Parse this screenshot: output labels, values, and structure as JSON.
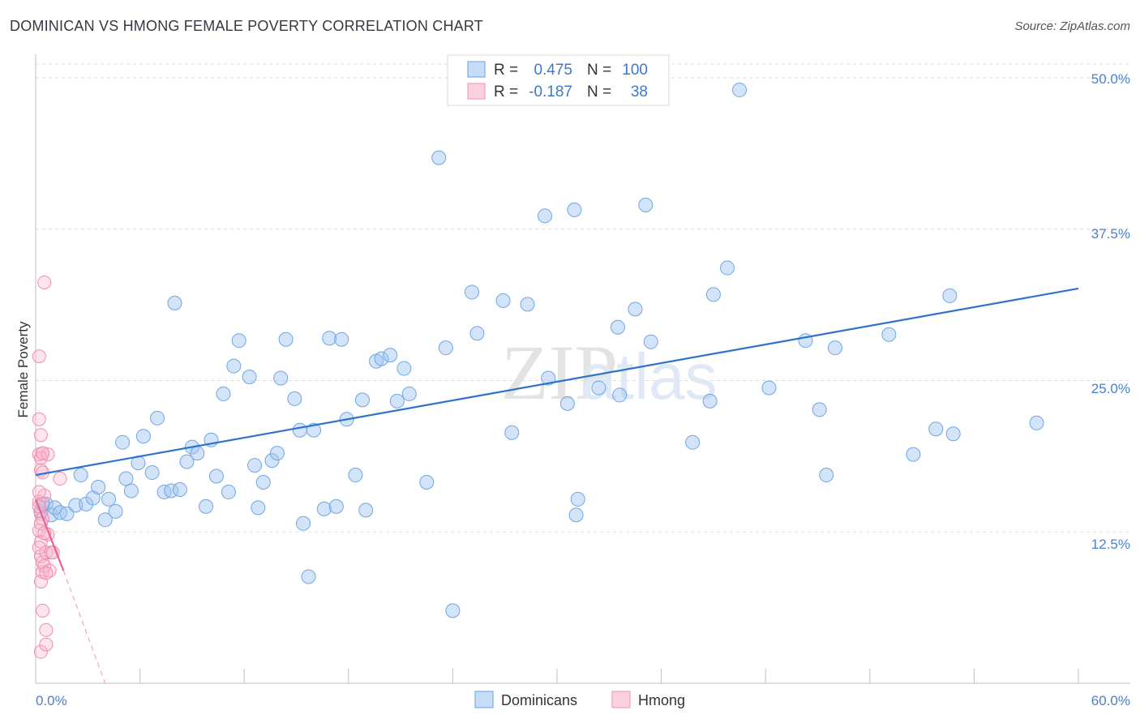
{
  "title": "DOMINICAN VS HMONG FEMALE POVERTY CORRELATION CHART",
  "source": "Source: ZipAtlas.com",
  "watermark": {
    "zip": "ZIP",
    "atlas": "atlas"
  },
  "legend_box": {
    "rows": [
      {
        "r_label": "R =",
        "r_value": "0.475",
        "n_label": "N =",
        "n_value": "100",
        "color": "#7aaee8"
      },
      {
        "r_label": "R =",
        "r_value": "-0.187",
        "n_label": "N =",
        "n_value": "38",
        "color": "#f4a0bb"
      }
    ]
  },
  "colors": {
    "blue": "#6fa6e4",
    "blue_line": "#2f72c9",
    "pink": "#f08db0",
    "pink_line": "#e8628f",
    "tick_text": "#4a7fd0"
  },
  "chart_data": {
    "type": "scatter",
    "title": "DOMINICAN VS HMONG FEMALE POVERTY CORRELATION CHART",
    "xlabel": "",
    "ylabel": "Female Poverty",
    "xlim": [
      0,
      60
    ],
    "ylim": [
      0,
      50
    ],
    "x_tick_labels": [
      "0.0%",
      "60.0%"
    ],
    "y_ticks": [
      12.5,
      25.0,
      37.5,
      50.0
    ],
    "y_tick_labels": [
      "12.5%",
      "25.0%",
      "37.5%",
      "50.0%"
    ],
    "grid": true,
    "legend_position": "bottom-center",
    "series": [
      {
        "name": "Dominicans",
        "color": "#6fa6e4",
        "trend": {
          "x": [
            0,
            60
          ],
          "y": [
            17.2,
            32.6
          ]
        },
        "points": [
          [
            0.3,
            14.2
          ],
          [
            0.6,
            14.8
          ],
          [
            0.9,
            13.9
          ],
          [
            1.1,
            14.5
          ],
          [
            1.4,
            14.1
          ],
          [
            1.8,
            14.0
          ],
          [
            2.3,
            14.7
          ],
          [
            2.6,
            17.2
          ],
          [
            2.9,
            14.8
          ],
          [
            3.3,
            15.3
          ],
          [
            3.6,
            16.2
          ],
          [
            4.0,
            13.5
          ],
          [
            4.2,
            15.2
          ],
          [
            4.6,
            14.2
          ],
          [
            5.0,
            19.9
          ],
          [
            5.2,
            16.9
          ],
          [
            5.5,
            15.9
          ],
          [
            5.9,
            18.2
          ],
          [
            6.2,
            20.4
          ],
          [
            6.7,
            17.4
          ],
          [
            7.0,
            21.9
          ],
          [
            7.4,
            15.8
          ],
          [
            7.8,
            15.9
          ],
          [
            8.0,
            31.4
          ],
          [
            8.3,
            16.0
          ],
          [
            8.7,
            18.3
          ],
          [
            9.0,
            19.5
          ],
          [
            9.3,
            19.0
          ],
          [
            9.8,
            14.6
          ],
          [
            10.1,
            20.1
          ],
          [
            10.4,
            17.1
          ],
          [
            10.8,
            23.9
          ],
          [
            11.1,
            15.8
          ],
          [
            11.4,
            26.2
          ],
          [
            11.7,
            28.3
          ],
          [
            12.3,
            25.3
          ],
          [
            12.6,
            18.0
          ],
          [
            12.8,
            14.5
          ],
          [
            13.1,
            16.6
          ],
          [
            13.6,
            18.4
          ],
          [
            13.9,
            19.0
          ],
          [
            14.1,
            25.2
          ],
          [
            14.4,
            28.4
          ],
          [
            14.9,
            23.5
          ],
          [
            15.2,
            20.9
          ],
          [
            15.4,
            13.2
          ],
          [
            15.7,
            8.8
          ],
          [
            16.0,
            20.9
          ],
          [
            16.6,
            14.4
          ],
          [
            16.9,
            28.5
          ],
          [
            17.3,
            14.6
          ],
          [
            17.6,
            28.4
          ],
          [
            17.9,
            21.8
          ],
          [
            18.4,
            17.2
          ],
          [
            18.8,
            23.4
          ],
          [
            19.0,
            14.3
          ],
          [
            19.6,
            26.6
          ],
          [
            19.9,
            26.8
          ],
          [
            20.4,
            27.1
          ],
          [
            20.8,
            23.3
          ],
          [
            21.2,
            26.0
          ],
          [
            21.5,
            23.9
          ],
          [
            22.5,
            16.6
          ],
          [
            23.2,
            43.4
          ],
          [
            23.6,
            27.7
          ],
          [
            24.0,
            6.0
          ],
          [
            25.1,
            32.3
          ],
          [
            25.4,
            28.9
          ],
          [
            26.9,
            31.6
          ],
          [
            27.4,
            20.7
          ],
          [
            28.3,
            31.3
          ],
          [
            29.3,
            38.6
          ],
          [
            29.5,
            25.2
          ],
          [
            30.6,
            23.1
          ],
          [
            31.0,
            39.1
          ],
          [
            31.2,
            15.2
          ],
          [
            31.1,
            13.9
          ],
          [
            32.4,
            24.4
          ],
          [
            33.5,
            29.4
          ],
          [
            33.6,
            23.8
          ],
          [
            34.5,
            30.9
          ],
          [
            35.1,
            39.5
          ],
          [
            35.4,
            28.2
          ],
          [
            37.8,
            19.9
          ],
          [
            38.8,
            23.3
          ],
          [
            39.0,
            32.1
          ],
          [
            39.8,
            34.3
          ],
          [
            40.5,
            49.0
          ],
          [
            42.2,
            24.4
          ],
          [
            44.3,
            28.3
          ],
          [
            45.1,
            22.6
          ],
          [
            45.5,
            17.2
          ],
          [
            46.0,
            27.7
          ],
          [
            49.1,
            28.8
          ],
          [
            50.5,
            18.9
          ],
          [
            51.8,
            21.0
          ],
          [
            52.8,
            20.6
          ],
          [
            52.6,
            32.0
          ],
          [
            57.6,
            21.5
          ],
          [
            0.4,
            14.8
          ]
        ]
      },
      {
        "name": "Hmong",
        "color": "#f08db0",
        "trend": {
          "x": [
            0,
            1.6
          ],
          "y": [
            15.2,
            9.3
          ],
          "extension": {
            "x": [
              1.6,
              4.0
            ],
            "y": [
              9.3,
              0
            ]
          }
        },
        "points": [
          [
            0.2,
            15.0
          ],
          [
            0.3,
            14.0
          ],
          [
            0.2,
            12.6
          ],
          [
            0.3,
            10.5
          ],
          [
            0.4,
            9.2
          ],
          [
            0.3,
            17.6
          ],
          [
            0.2,
            18.9
          ],
          [
            0.4,
            19.0
          ],
          [
            0.3,
            20.5
          ],
          [
            0.2,
            21.8
          ],
          [
            0.2,
            27.0
          ],
          [
            0.5,
            33.1
          ],
          [
            0.4,
            13.6
          ],
          [
            0.3,
            11.7
          ],
          [
            0.4,
            10.0
          ],
          [
            0.3,
            8.4
          ],
          [
            0.4,
            6.0
          ],
          [
            0.3,
            2.6
          ],
          [
            0.6,
            3.2
          ],
          [
            0.6,
            4.4
          ],
          [
            0.5,
            9.7
          ],
          [
            0.6,
            10.8
          ],
          [
            0.7,
            12.3
          ],
          [
            0.8,
            9.3
          ],
          [
            0.9,
            10.8
          ],
          [
            1.0,
            10.8
          ],
          [
            1.4,
            16.9
          ],
          [
            0.3,
            18.6
          ],
          [
            0.4,
            17.4
          ],
          [
            0.5,
            15.5
          ],
          [
            0.7,
            18.9
          ],
          [
            0.2,
            14.6
          ],
          [
            0.3,
            13.2
          ],
          [
            0.2,
            11.2
          ],
          [
            0.5,
            12.4
          ],
          [
            0.6,
            9.1
          ],
          [
            0.2,
            15.8
          ],
          [
            0.4,
            19.0
          ]
        ]
      }
    ]
  }
}
